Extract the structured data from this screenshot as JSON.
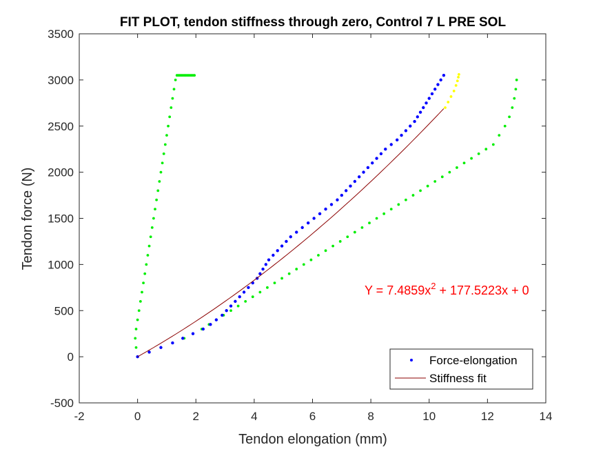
{
  "chart_data": {
    "type": "scatter",
    "title": "FIT PLOT, tendon stiffness through zero, Control 7 L PRE SOL",
    "xlabel": "Tendon elongation (mm)",
    "ylabel": "Tendon force (N)",
    "xlim": [
      -2,
      14
    ],
    "ylim": [
      -500,
      3500
    ],
    "xticks": [
      "-2",
      "0",
      "2",
      "4",
      "6",
      "8",
      "10",
      "12",
      "14"
    ],
    "yticks": [
      "-500",
      "0",
      "500",
      "1000",
      "1500",
      "2000",
      "2500",
      "3000",
      "3500"
    ],
    "grid": false,
    "legend_position": "bottom-right",
    "annotation": {
      "prefix": "Y = 7.4859x",
      "superscript": "2",
      "suffix": " + 177.5223x + 0",
      "color": "#ff0000"
    },
    "fit": {
      "a": 7.4859,
      "b": 177.5223,
      "c": 0,
      "x_range": [
        0,
        10.5
      ],
      "color": "#8b0000"
    },
    "series": [
      {
        "name": "Force-elongation",
        "color": "#0000ff",
        "x": [
          0.0,
          0.4,
          0.8,
          1.2,
          1.55,
          1.9,
          2.25,
          2.5,
          2.7,
          2.9,
          3.05,
          3.2,
          3.35,
          3.5,
          3.65,
          3.8,
          3.95,
          4.1,
          4.2,
          4.3,
          4.4,
          4.5,
          4.65,
          4.8,
          4.95,
          5.1,
          5.25,
          5.45,
          5.65,
          5.85,
          6.05,
          6.25,
          6.45,
          6.65,
          6.85,
          7.0,
          7.15,
          7.3,
          7.45,
          7.6,
          7.75,
          7.9,
          8.05,
          8.2,
          8.35,
          8.5,
          8.7,
          8.9,
          9.05,
          9.2,
          9.35,
          9.5,
          9.6,
          9.7,
          9.8,
          9.9,
          10.0,
          10.1,
          10.2,
          10.3,
          10.4,
          10.5
        ],
        "y": [
          0,
          50,
          100,
          150,
          200,
          250,
          300,
          350,
          400,
          450,
          500,
          550,
          600,
          650,
          700,
          750,
          800,
          850,
          900,
          950,
          1000,
          1050,
          1100,
          1150,
          1200,
          1250,
          1300,
          1350,
          1400,
          1450,
          1500,
          1550,
          1600,
          1650,
          1700,
          1750,
          1800,
          1850,
          1900,
          1950,
          2000,
          2050,
          2100,
          2150,
          2200,
          2250,
          2300,
          2350,
          2400,
          2450,
          2500,
          2550,
          2600,
          2650,
          2700,
          2750,
          2800,
          2850,
          2900,
          2950,
          3000,
          3050
        ]
      },
      {
        "color": "#00ee00",
        "x": [
          0.0,
          0.4,
          0.8,
          1.2,
          1.6,
          1.9,
          2.2,
          2.45,
          2.7,
          2.95,
          3.2,
          3.45,
          3.7,
          3.95,
          4.2,
          4.45,
          4.7,
          4.95,
          5.2,
          5.45,
          5.7,
          5.95,
          6.2,
          6.45,
          6.7,
          6.95,
          7.2,
          7.45,
          7.7,
          7.95,
          8.2,
          8.45,
          8.7,
          8.95,
          9.2,
          9.45,
          9.7,
          9.95,
          10.2,
          10.45,
          10.7,
          10.95,
          11.2,
          11.45,
          11.7,
          11.95,
          12.2,
          12.4,
          12.6,
          12.75,
          12.85,
          12.92,
          12.97,
          13.0
        ],
        "y": [
          0,
          50,
          100,
          150,
          200,
          250,
          300,
          350,
          400,
          450,
          500,
          550,
          600,
          650,
          700,
          750,
          800,
          850,
          900,
          950,
          1000,
          1050,
          1100,
          1150,
          1200,
          1250,
          1300,
          1350,
          1400,
          1450,
          1500,
          1550,
          1600,
          1650,
          1700,
          1750,
          1800,
          1850,
          1900,
          1950,
          2000,
          2050,
          2100,
          2150,
          2200,
          2250,
          2300,
          2400,
          2500,
          2600,
          2700,
          2800,
          2900,
          3000
        ]
      },
      {
        "color": "#00ee00",
        "x": [
          0.0,
          -0.05,
          -0.08,
          -0.05,
          0.0,
          0.05,
          0.1,
          0.15,
          0.2,
          0.25,
          0.3,
          0.35,
          0.4,
          0.45,
          0.5,
          0.55,
          0.6,
          0.65,
          0.7,
          0.75,
          0.8,
          0.85,
          0.9,
          0.95,
          1.0,
          1.05,
          1.1,
          1.15,
          1.2,
          1.25,
          1.3,
          1.35,
          1.4,
          1.45,
          1.5,
          1.55,
          1.6,
          1.65,
          1.7,
          1.75,
          1.8,
          1.85,
          1.9,
          1.95
        ],
        "y": [
          0,
          100,
          200,
          300,
          400,
          500,
          600,
          700,
          800,
          900,
          1000,
          1100,
          1200,
          1300,
          1400,
          1500,
          1600,
          1700,
          1800,
          1900,
          2000,
          2100,
          2200,
          2300,
          2400,
          2500,
          2600,
          2700,
          2800,
          2900,
          3000,
          3050,
          3050,
          3050,
          3050,
          3050,
          3050,
          3050,
          3050,
          3050,
          3050,
          3050,
          3050,
          3050
        ]
      },
      {
        "color": "#ffff00",
        "x": [
          10.55,
          10.65,
          10.75,
          10.85,
          10.92,
          10.97,
          11.0,
          11.02
        ],
        "y": [
          2700,
          2760,
          2820,
          2880,
          2940,
          2990,
          3030,
          3060
        ]
      },
      {
        "name": "Stiffness fit",
        "color": "#8b0000",
        "kind": "line"
      }
    ]
  }
}
